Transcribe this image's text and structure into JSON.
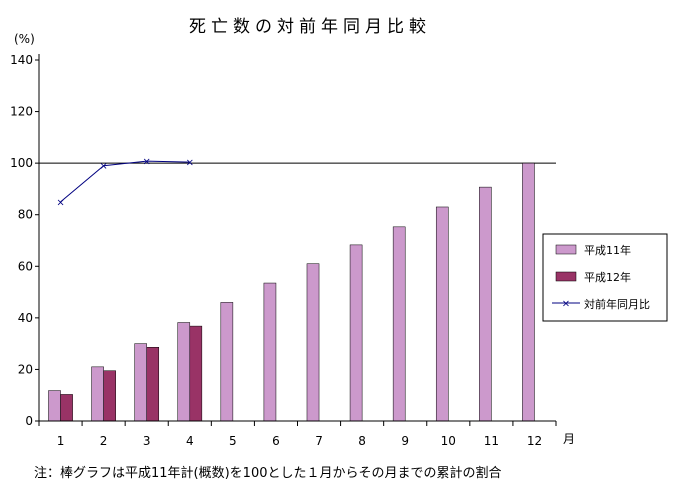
{
  "chart_data": {
    "type": "bar",
    "title": "死亡数の対前年同月比較",
    "ylabel": "(%)",
    "xlabel": "月",
    "ylim": [
      0,
      140
    ],
    "yticks": [
      0,
      20,
      40,
      60,
      80,
      100,
      120,
      140
    ],
    "categories": [
      "1",
      "2",
      "3",
      "4",
      "5",
      "6",
      "7",
      "8",
      "9",
      "10",
      "11",
      "12"
    ],
    "reference_line": 100,
    "series": [
      {
        "name": "平成11年",
        "kind": "bar",
        "color": "#cc99cc",
        "values": [
          11.8,
          21.0,
          30.0,
          38.2,
          46.0,
          53.5,
          61.0,
          68.3,
          75.3,
          83.0,
          90.7,
          100
        ]
      },
      {
        "name": "平成12年",
        "kind": "bar",
        "color": "#993366",
        "values": [
          10.3,
          19.5,
          28.6,
          36.8,
          null,
          null,
          null,
          null,
          null,
          null,
          null,
          null
        ]
      },
      {
        "name": "対前年同月比",
        "kind": "line",
        "color": "#000080",
        "values": [
          85.0,
          99.0,
          100.8,
          100.4,
          null,
          null,
          null,
          null,
          null,
          null,
          null,
          null
        ]
      }
    ],
    "legend_position": "right",
    "note": "注：棒グラフは平成11年計(概数)を100とした１月からその月までの累計の割合"
  }
}
